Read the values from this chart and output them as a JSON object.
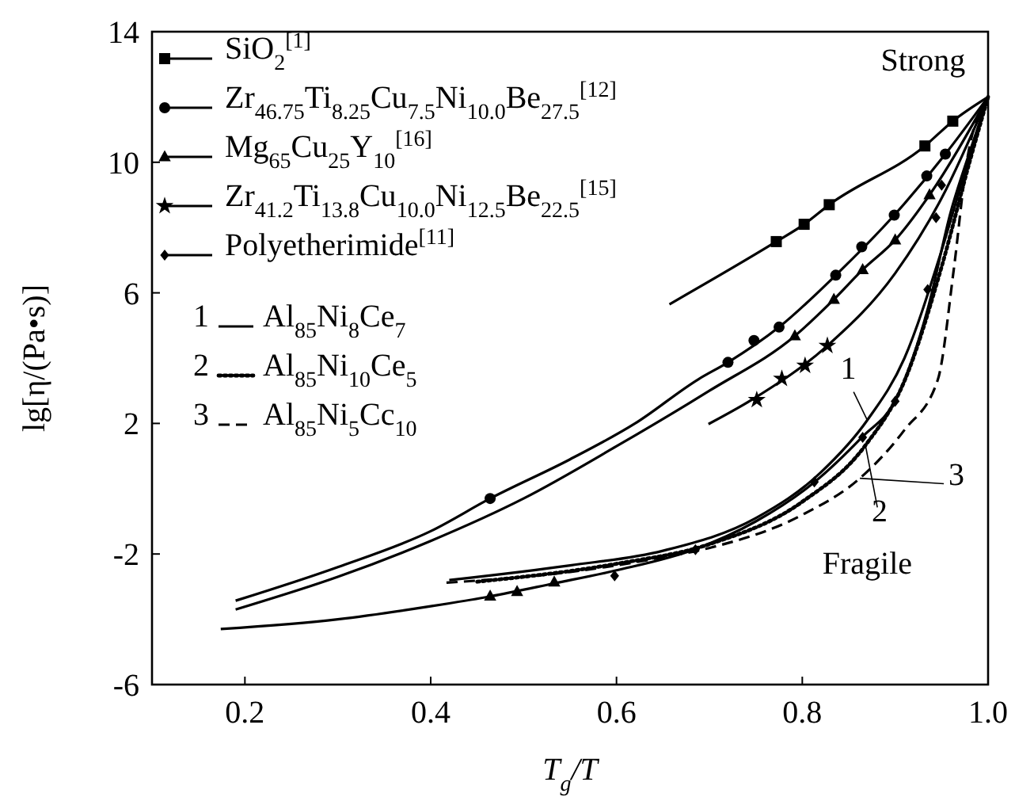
{
  "chart_data": {
    "type": "line",
    "xlabel": "T$_{g}$/T",
    "ylabel": "lg[η/(Pa•s)]",
    "xlim": [
      0.1,
      1.0
    ],
    "ylim": [
      -6,
      14
    ],
    "xticks": [
      0.2,
      0.4,
      0.6,
      0.8,
      {
        "value": 1.0,
        "label": "1.0"
      }
    ],
    "yticks": [
      -6,
      -2,
      2,
      6,
      10,
      14
    ],
    "grid": false,
    "legend": "top left",
    "series": [
      {
        "type": "scatter",
        "name": "SiO$_{2}$$^{[1]}$",
        "color": "#000000",
        "marker": "square",
        "x": [
          0.772,
          0.802,
          0.829,
          0.932,
          0.962
        ],
        "values": [
          7.57,
          8.1,
          8.7,
          10.5,
          11.26
        ]
      },
      {
        "type": "scatter",
        "name": "Zr$_{46.75}$Ti$_{8.25}$Cu$_{7.5}$Ni$_{10.0}$Be$_{27.5}$$^{[12]}$",
        "color": "#000000",
        "marker": "circle",
        "x": [
          0.464,
          0.72,
          0.748,
          0.775,
          0.836,
          0.864,
          0.899,
          0.934,
          0.954
        ],
        "values": [
          -0.3,
          3.87,
          4.54,
          4.95,
          6.54,
          7.41,
          8.38,
          9.58,
          10.25
        ]
      },
      {
        "type": "scatter",
        "name": "Mg$_{65}$Cu$_{25}$Y$_{10}$$^{[16]}$",
        "color": "#000000",
        "marker": "triangle",
        "x": [
          0.464,
          0.493,
          0.533,
          0.792,
          0.834,
          0.865,
          0.9,
          0.937
        ],
        "values": [
          -3.29,
          -3.15,
          -2.86,
          4.68,
          5.8,
          6.71,
          7.62,
          9.0
        ]
      },
      {
        "type": "scatter",
        "name": "Zr$_{41.2}$Ti$_{13.8}$Cu$_{10.0}$Ni$_{12.5}$Be$_{22.5}$$^{[15]}$",
        "color": "#000000",
        "marker": "star",
        "x": [
          0.751,
          0.778,
          0.803,
          0.827
        ],
        "values": [
          2.72,
          3.37,
          3.77,
          4.38
        ]
      },
      {
        "type": "scatter",
        "name": "Polyetherimide$^{[11]}$",
        "color": "#000000",
        "marker": "diamond",
        "x": [
          0.598,
          0.685,
          0.813,
          0.865,
          0.9,
          0.935,
          0.944,
          0.95
        ],
        "values": [
          -2.67,
          -1.87,
          0.21,
          1.57,
          2.68,
          6.1,
          8.3,
          9.3
        ]
      },
      {
        "type": "line",
        "color": "#000000",
        "line_style": "solid",
        "x": [
          0.657,
          0.772,
          0.802,
          0.829,
          0.932,
          0.962,
          1.0
        ],
        "values": [
          5.65,
          7.57,
          8.1,
          8.7,
          10.5,
          11.26,
          12.0
        ]
      },
      {
        "type": "line",
        "color": "#000000",
        "line_style": "solid",
        "x": [
          0.19,
          0.3,
          0.4,
          0.464,
          0.55,
          0.62,
          0.688,
          0.72,
          0.775,
          0.836,
          0.899,
          0.954,
          1.0
        ],
        "values": [
          -3.43,
          -2.4,
          -1.3,
          -0.3,
          0.9,
          2.0,
          3.35,
          3.87,
          4.95,
          6.54,
          8.38,
          10.25,
          12.0
        ]
      },
      {
        "type": "line",
        "color": "#000000",
        "line_style": "solid",
        "x": [
          0.19,
          0.3,
          0.4,
          0.5,
          0.6,
          0.7,
          0.792,
          0.834,
          0.865,
          0.9,
          0.937,
          1.0
        ],
        "values": [
          -3.7,
          -2.7,
          -1.6,
          -0.3,
          1.3,
          3.0,
          4.68,
          5.8,
          6.71,
          7.62,
          9.0,
          12.0
        ]
      },
      {
        "type": "line",
        "color": "#000000",
        "line_style": "solid",
        "x": [
          0.699,
          0.75,
          0.827,
          0.9,
          0.95,
          1.0
        ],
        "values": [
          1.98,
          2.8,
          4.38,
          6.6,
          8.9,
          12.0
        ]
      },
      {
        "type": "line",
        "color": "#000000",
        "line_style": "solid",
        "x": [
          0.174,
          0.3,
          0.4,
          0.464,
          0.533,
          0.6,
          0.685,
          0.75,
          0.813,
          0.865,
          0.9,
          0.935,
          0.96,
          0.98,
          1.0
        ],
        "values": [
          -4.3,
          -4.0,
          -3.6,
          -3.3,
          -2.9,
          -2.5,
          -1.85,
          -1.0,
          0.2,
          1.6,
          2.7,
          5.5,
          8.5,
          10.3,
          12.0
        ]
      },
      {
        "type": "line",
        "name": "Al$_{85}$Ni$_{8}$Ce$_{7}$",
        "color": "#000000",
        "line_style": "solid",
        "x": [
          0.42,
          0.55,
          0.65,
          0.75,
          0.82,
          0.87,
          0.91,
          0.95,
          0.98,
          1.0
        ],
        "values": [
          -2.8,
          -2.35,
          -1.9,
          -0.9,
          0.5,
          2.1,
          4.0,
          7.3,
          10.2,
          12.0
        ]
      },
      {
        "type": "line",
        "name": "Al$_{85}$Ni$_{10}$Ce$_{5}$",
        "color": "#000000",
        "line_style": "dotted",
        "x": [
          0.45,
          0.6,
          0.7,
          0.8,
          0.868,
          0.91,
          0.95,
          0.98,
          1.0
        ],
        "values": [
          -2.85,
          -2.3,
          -1.7,
          -0.4,
          1.33,
          3.3,
          6.8,
          10.0,
          12.0
        ]
      },
      {
        "type": "line",
        "name": "Al$_{85}$Ni$_{5}$Cc$_{10}$",
        "color": "#000000",
        "line_style": "dashed",
        "x": [
          0.417,
          0.55,
          0.65,
          0.702,
          0.8,
          0.862,
          0.91,
          0.946,
          0.963,
          0.977,
          1.0
        ],
        "values": [
          -2.88,
          -2.55,
          -2.1,
          -1.8,
          -0.8,
          0.32,
          1.8,
          3.35,
          6.7,
          10.0,
          12.0
        ]
      }
    ],
    "annotations": [
      "Strong",
      "Fragile",
      {
        "text": "1",
        "x": 0.87,
        "y": 2.1
      },
      {
        "text": "2",
        "x": 0.868,
        "y": 1.33
      },
      {
        "text": "3",
        "x": 0.862,
        "y": 0.32
      }
    ]
  }
}
